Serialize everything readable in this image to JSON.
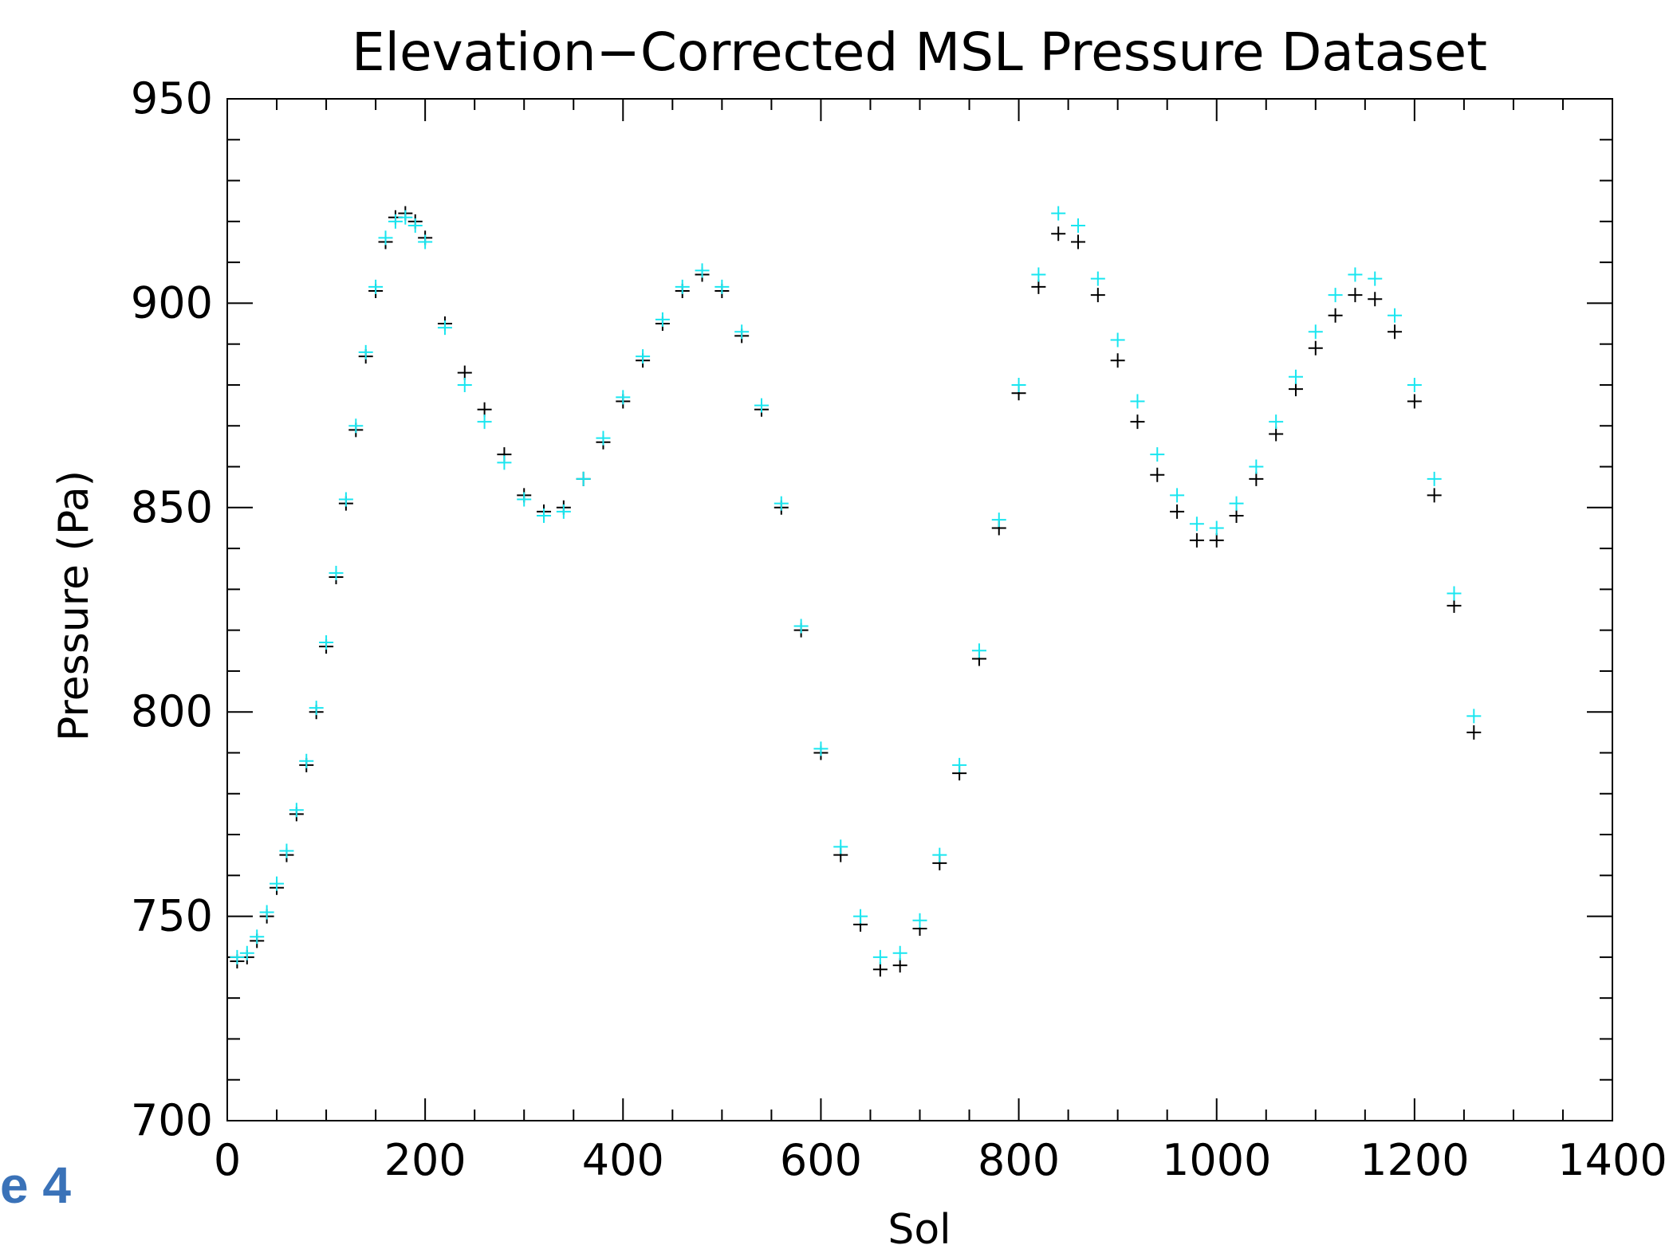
{
  "slide_fragment": "e 4",
  "colors": {
    "series_dark": "#000000",
    "series_cyan": "#19e6f0",
    "slide_label": "#3a72b8"
  },
  "chart_data": {
    "type": "scatter",
    "title": "Elevation−Corrected MSL Pressure Dataset",
    "xlabel": "Sol",
    "ylabel": "Pressure (Pa)",
    "xlim": [
      0,
      1400
    ],
    "ylim": [
      700,
      950
    ],
    "x_ticks": [
      0,
      200,
      400,
      600,
      800,
      1000,
      1200,
      1400
    ],
    "y_ticks": [
      700,
      750,
      800,
      850,
      900,
      950
    ],
    "marker": "plus",
    "grid": false,
    "legend": "none",
    "series": [
      {
        "color": "#000000",
        "points": [
          [
            10,
            739
          ],
          [
            20,
            740
          ],
          [
            30,
            744
          ],
          [
            40,
            750
          ],
          [
            50,
            757
          ],
          [
            60,
            765
          ],
          [
            70,
            775
          ],
          [
            80,
            787
          ],
          [
            90,
            800
          ],
          [
            100,
            816
          ],
          [
            110,
            833
          ],
          [
            120,
            851
          ],
          [
            130,
            869
          ],
          [
            140,
            887
          ],
          [
            150,
            903
          ],
          [
            160,
            915
          ],
          [
            170,
            921
          ],
          [
            180,
            922
          ],
          [
            190,
            920
          ],
          [
            200,
            916
          ],
          [
            220,
            895
          ],
          [
            240,
            883
          ],
          [
            260,
            874
          ],
          [
            280,
            863
          ],
          [
            300,
            853
          ],
          [
            320,
            849
          ],
          [
            340,
            850
          ],
          [
            360,
            857
          ],
          [
            380,
            866
          ],
          [
            400,
            876
          ],
          [
            420,
            886
          ],
          [
            440,
            895
          ],
          [
            460,
            903
          ],
          [
            480,
            907
          ],
          [
            500,
            903
          ],
          [
            520,
            892
          ],
          [
            540,
            874
          ],
          [
            560,
            850
          ],
          [
            580,
            820
          ],
          [
            600,
            790
          ],
          [
            620,
            765
          ],
          [
            640,
            748
          ],
          [
            660,
            737
          ],
          [
            680,
            738
          ],
          [
            700,
            747
          ],
          [
            720,
            763
          ],
          [
            740,
            785
          ],
          [
            760,
            813
          ],
          [
            780,
            845
          ],
          [
            800,
            878
          ],
          [
            820,
            904
          ],
          [
            840,
            917
          ],
          [
            860,
            915
          ],
          [
            880,
            902
          ],
          [
            900,
            886
          ],
          [
            920,
            871
          ],
          [
            940,
            858
          ],
          [
            960,
            849
          ],
          [
            980,
            842
          ],
          [
            1000,
            842
          ],
          [
            1020,
            848
          ],
          [
            1040,
            857
          ],
          [
            1060,
            868
          ],
          [
            1080,
            879
          ],
          [
            1100,
            889
          ],
          [
            1120,
            897
          ],
          [
            1140,
            902
          ],
          [
            1160,
            901
          ],
          [
            1180,
            893
          ],
          [
            1200,
            876
          ],
          [
            1220,
            853
          ],
          [
            1240,
            826
          ],
          [
            1260,
            795
          ]
        ]
      },
      {
        "color": "#19e6f0",
        "points": [
          [
            10,
            740
          ],
          [
            20,
            741
          ],
          [
            30,
            745
          ],
          [
            40,
            751
          ],
          [
            50,
            758
          ],
          [
            60,
            766
          ],
          [
            70,
            776
          ],
          [
            80,
            788
          ],
          [
            90,
            801
          ],
          [
            100,
            817
          ],
          [
            110,
            834
          ],
          [
            120,
            852
          ],
          [
            130,
            870
          ],
          [
            140,
            888
          ],
          [
            150,
            904
          ],
          [
            160,
            916
          ],
          [
            170,
            920
          ],
          [
            180,
            921
          ],
          [
            190,
            919
          ],
          [
            200,
            915
          ],
          [
            220,
            894
          ],
          [
            240,
            880
          ],
          [
            260,
            871
          ],
          [
            280,
            861
          ],
          [
            300,
            852
          ],
          [
            320,
            848
          ],
          [
            340,
            849
          ],
          [
            360,
            857
          ],
          [
            380,
            867
          ],
          [
            400,
            877
          ],
          [
            420,
            887
          ],
          [
            440,
            896
          ],
          [
            460,
            904
          ],
          [
            480,
            908
          ],
          [
            500,
            904
          ],
          [
            520,
            893
          ],
          [
            540,
            875
          ],
          [
            560,
            851
          ],
          [
            580,
            821
          ],
          [
            600,
            791
          ],
          [
            620,
            767
          ],
          [
            640,
            750
          ],
          [
            660,
            740
          ],
          [
            680,
            741
          ],
          [
            700,
            749
          ],
          [
            720,
            765
          ],
          [
            740,
            787
          ],
          [
            760,
            815
          ],
          [
            780,
            847
          ],
          [
            800,
            880
          ],
          [
            820,
            907
          ],
          [
            840,
            922
          ],
          [
            860,
            919
          ],
          [
            880,
            906
          ],
          [
            900,
            891
          ],
          [
            920,
            876
          ],
          [
            940,
            863
          ],
          [
            960,
            853
          ],
          [
            980,
            846
          ],
          [
            1000,
            845
          ],
          [
            1020,
            851
          ],
          [
            1040,
            860
          ],
          [
            1060,
            871
          ],
          [
            1080,
            882
          ],
          [
            1100,
            893
          ],
          [
            1120,
            902
          ],
          [
            1140,
            907
          ],
          [
            1160,
            906
          ],
          [
            1180,
            897
          ],
          [
            1200,
            880
          ],
          [
            1220,
            857
          ],
          [
            1240,
            829
          ],
          [
            1260,
            799
          ]
        ]
      }
    ]
  }
}
